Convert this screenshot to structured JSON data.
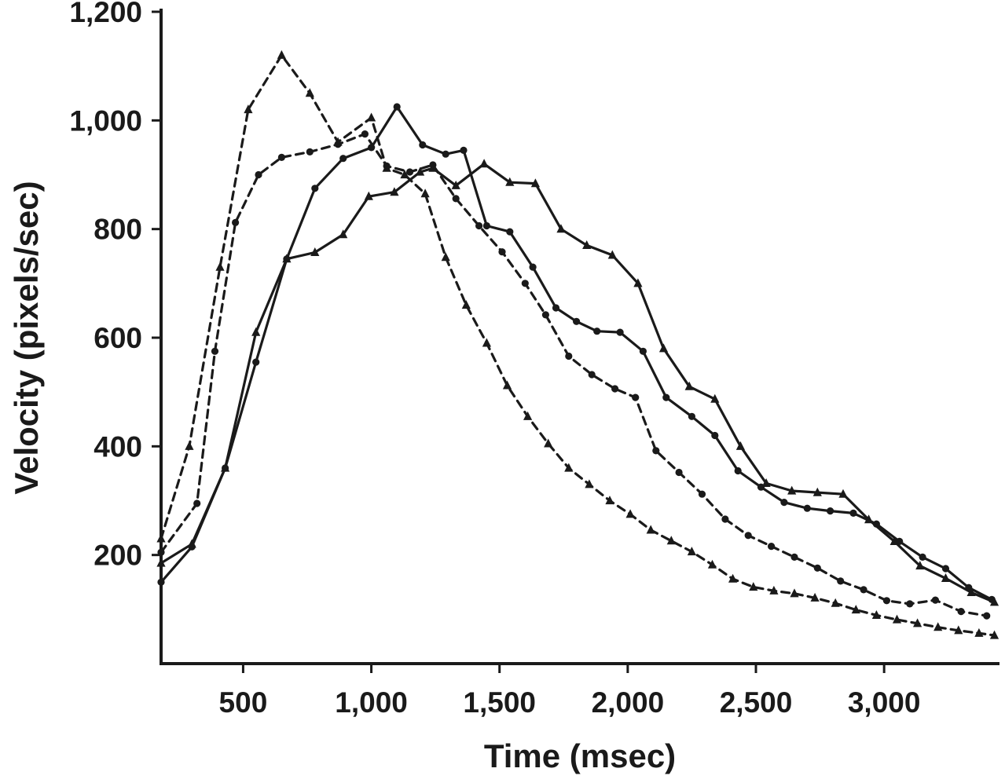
{
  "figure": {
    "background": "#ffffff"
  },
  "chart_data": {
    "type": "line",
    "title": "",
    "xlabel": "Time (msec)",
    "ylabel": "Velocity (pixels/sec)",
    "xlim": [
      180,
      3450
    ],
    "ylim": [
      0,
      1200
    ],
    "x_ticks": [
      500,
      1000,
      1500,
      2000,
      2500,
      3000
    ],
    "x_tick_labels": [
      "500",
      "1,000",
      "1,500",
      "2,000",
      "2,500",
      "3,000"
    ],
    "y_ticks": [
      200,
      400,
      600,
      800,
      1000,
      1200
    ],
    "y_tick_labels": [
      "200",
      "400",
      "600",
      "800",
      "1,000",
      "1,200"
    ],
    "grid": false,
    "legend": "none",
    "line_color": "#1a1a1a",
    "series": [
      {
        "name": "dashed-triangle",
        "line_style": "dashed",
        "marker": "triangle",
        "points": [
          [
            180,
            230
          ],
          [
            290,
            400
          ],
          [
            410,
            730
          ],
          [
            520,
            1020
          ],
          [
            650,
            1120
          ],
          [
            760,
            1050
          ],
          [
            870,
            960
          ],
          [
            1000,
            1005
          ],
          [
            1060,
            912
          ],
          [
            1130,
            900
          ],
          [
            1210,
            865
          ],
          [
            1290,
            748
          ],
          [
            1370,
            660
          ],
          [
            1450,
            590
          ],
          [
            1530,
            512
          ],
          [
            1610,
            455
          ],
          [
            1690,
            405
          ],
          [
            1770,
            360
          ],
          [
            1850,
            330
          ],
          [
            1930,
            300
          ],
          [
            2010,
            275
          ],
          [
            2090,
            246
          ],
          [
            2170,
            226
          ],
          [
            2250,
            206
          ],
          [
            2330,
            182
          ],
          [
            2410,
            156
          ],
          [
            2490,
            141
          ],
          [
            2570,
            134
          ],
          [
            2650,
            129
          ],
          [
            2730,
            121
          ],
          [
            2810,
            111
          ],
          [
            2890,
            99
          ],
          [
            2970,
            89
          ],
          [
            3050,
            81
          ],
          [
            3130,
            74
          ],
          [
            3210,
            67
          ],
          [
            3290,
            61
          ],
          [
            3370,
            56
          ],
          [
            3430,
            52
          ]
        ]
      },
      {
        "name": "dashed-circle",
        "line_style": "dashed",
        "marker": "circle",
        "points": [
          [
            180,
            205
          ],
          [
            320,
            295
          ],
          [
            390,
            575
          ],
          [
            470,
            812
          ],
          [
            560,
            900
          ],
          [
            650,
            932
          ],
          [
            760,
            942
          ],
          [
            870,
            956
          ],
          [
            975,
            975
          ],
          [
            1060,
            916
          ],
          [
            1150,
            905
          ],
          [
            1240,
            918
          ],
          [
            1330,
            856
          ],
          [
            1420,
            806
          ],
          [
            1510,
            758
          ],
          [
            1600,
            700
          ],
          [
            1680,
            642
          ],
          [
            1770,
            566
          ],
          [
            1860,
            532
          ],
          [
            1950,
            506
          ],
          [
            2030,
            490
          ],
          [
            2110,
            392
          ],
          [
            2200,
            352
          ],
          [
            2290,
            312
          ],
          [
            2380,
            266
          ],
          [
            2470,
            236
          ],
          [
            2560,
            216
          ],
          [
            2650,
            196
          ],
          [
            2740,
            176
          ],
          [
            2830,
            152
          ],
          [
            2920,
            136
          ],
          [
            3010,
            116
          ],
          [
            3100,
            110
          ],
          [
            3200,
            117
          ],
          [
            3300,
            96
          ],
          [
            3400,
            88
          ]
        ]
      },
      {
        "name": "solid-circle",
        "line_style": "solid",
        "marker": "circle",
        "points": [
          [
            180,
            150
          ],
          [
            300,
            215
          ],
          [
            430,
            360
          ],
          [
            550,
            555
          ],
          [
            670,
            745
          ],
          [
            780,
            875
          ],
          [
            890,
            930
          ],
          [
            1000,
            950
          ],
          [
            1100,
            1025
          ],
          [
            1200,
            955
          ],
          [
            1290,
            938
          ],
          [
            1360,
            945
          ],
          [
            1450,
            806
          ],
          [
            1540,
            795
          ],
          [
            1630,
            730
          ],
          [
            1720,
            655
          ],
          [
            1800,
            630
          ],
          [
            1880,
            612
          ],
          [
            1970,
            610
          ],
          [
            2060,
            575
          ],
          [
            2150,
            490
          ],
          [
            2250,
            455
          ],
          [
            2340,
            420
          ],
          [
            2430,
            355
          ],
          [
            2520,
            325
          ],
          [
            2610,
            297
          ],
          [
            2700,
            286
          ],
          [
            2790,
            281
          ],
          [
            2880,
            277
          ],
          [
            2970,
            257
          ],
          [
            3060,
            225
          ],
          [
            3150,
            196
          ],
          [
            3240,
            175
          ],
          [
            3330,
            140
          ],
          [
            3420,
            118
          ]
        ]
      },
      {
        "name": "solid-triangle",
        "line_style": "solid",
        "marker": "triangle",
        "points": [
          [
            180,
            185
          ],
          [
            300,
            220
          ],
          [
            430,
            360
          ],
          [
            550,
            610
          ],
          [
            670,
            745
          ],
          [
            780,
            757
          ],
          [
            890,
            790
          ],
          [
            990,
            860
          ],
          [
            1090,
            868
          ],
          [
            1190,
            905
          ],
          [
            1240,
            912
          ],
          [
            1330,
            880
          ],
          [
            1440,
            920
          ],
          [
            1540,
            886
          ],
          [
            1640,
            884
          ],
          [
            1740,
            800
          ],
          [
            1840,
            770
          ],
          [
            1940,
            752
          ],
          [
            2040,
            700
          ],
          [
            2140,
            580
          ],
          [
            2240,
            510
          ],
          [
            2340,
            487
          ],
          [
            2440,
            400
          ],
          [
            2540,
            332
          ],
          [
            2640,
            318
          ],
          [
            2740,
            315
          ],
          [
            2840,
            312
          ],
          [
            2940,
            265
          ],
          [
            3040,
            225
          ],
          [
            3140,
            180
          ],
          [
            3240,
            157
          ],
          [
            3340,
            131
          ],
          [
            3430,
            113
          ]
        ]
      }
    ]
  }
}
